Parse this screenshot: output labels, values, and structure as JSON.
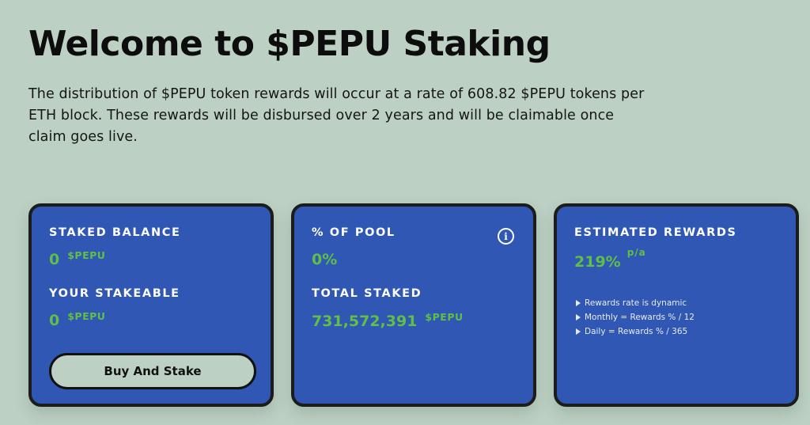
{
  "header": {
    "title": "Welcome to $PEPU Staking",
    "intro": "The distribution of $PEPU token rewards will occur at a rate of 608.82 $PEPU tokens per ETH block. These rewards will be disbursed over 2 years and will be claimable once claim goes live."
  },
  "staked_card": {
    "staked_balance_label": "STAKED BALANCE",
    "staked_balance_value": "0",
    "staked_balance_unit": "$PEPU",
    "stakeable_label": "YOUR STAKEABLE",
    "stakeable_value": "0",
    "stakeable_unit": "$PEPU",
    "button_label": "Buy And Stake"
  },
  "pool_card": {
    "pool_label": "% OF POOL",
    "pool_value": "0%",
    "info_icon": "info-icon",
    "info_glyph": "i",
    "total_staked_label": "TOTAL STAKED",
    "total_staked_value": "731,572,391",
    "total_staked_unit": "$PEPU"
  },
  "rewards_card": {
    "label": "ESTIMATED REWARDS",
    "value": "219%",
    "unit": "p/a",
    "notes": [
      "Rewards rate is dynamic",
      "Monthly = Rewards % / 12",
      "Daily = Rewards % / 365"
    ]
  },
  "colors": {
    "background": "#bcd1c3",
    "card": "#2f57b3",
    "accent_green": "#5fbf46",
    "border": "#1c1c1c"
  }
}
